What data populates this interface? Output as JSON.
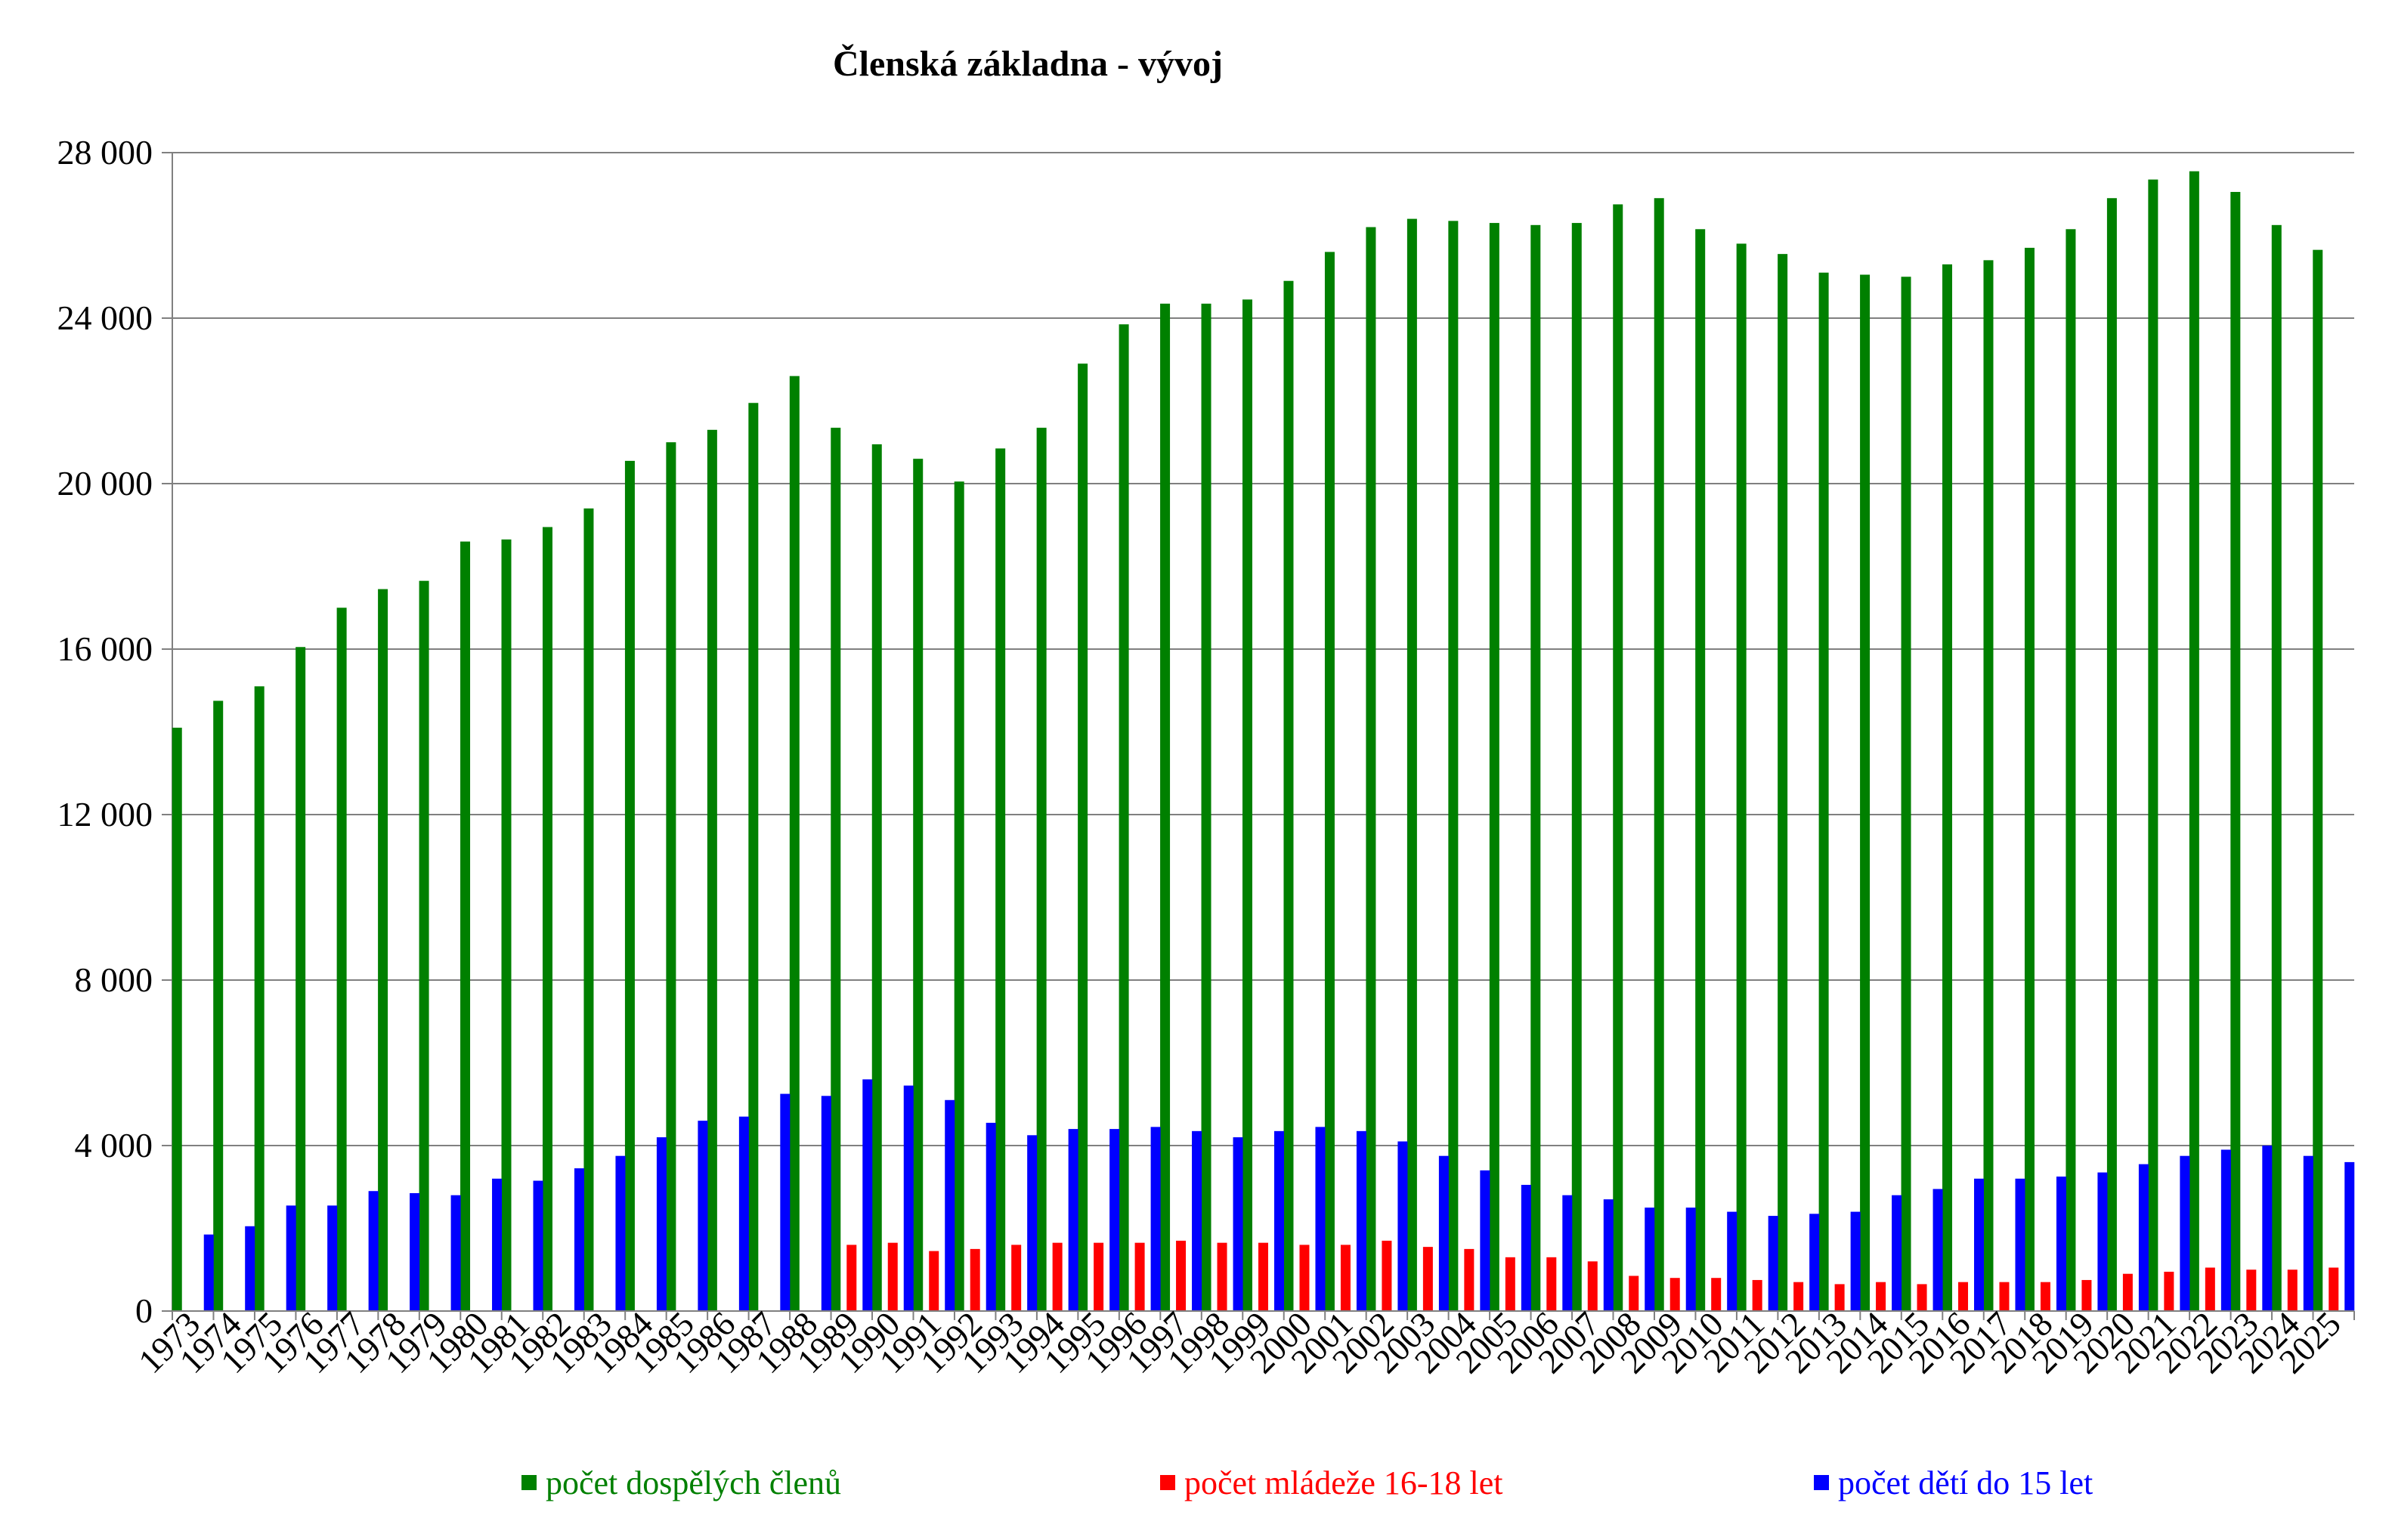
{
  "chart_data": {
    "type": "bar",
    "title": "Členská základna - vývoj",
    "xlabel": "",
    "ylabel": "",
    "ylim": [
      0,
      28000
    ],
    "yticks": [
      0,
      4000,
      8000,
      12000,
      16000,
      20000,
      24000,
      28000
    ],
    "ytick_labels": [
      "0",
      "4 000",
      "8 000",
      "12 000",
      "16 000",
      "20 000",
      "24 000",
      "28 000"
    ],
    "grid": true,
    "legend_position": "bottom",
    "categories": [
      "1973",
      "1974",
      "1975",
      "1976",
      "1977",
      "1978",
      "1979",
      "1980",
      "1981",
      "1982",
      "1983",
      "1984",
      "1985",
      "1986",
      "1987",
      "1988",
      "1989",
      "1990",
      "1991",
      "1992",
      "1993",
      "1994",
      "1995",
      "1996",
      "1997",
      "1998",
      "1999",
      "2000",
      "2001",
      "2002",
      "2003",
      "2004",
      "2005",
      "2006",
      "2007",
      "2008",
      "2009",
      "2010",
      "2011",
      "2012",
      "2013",
      "2014",
      "2015",
      "2016",
      "2017",
      "2018",
      "2019",
      "2020",
      "2021",
      "2022",
      "2023",
      "2024",
      "2025"
    ],
    "series": [
      {
        "name": "počet dospělých členů",
        "color": "#008000",
        "values": [
          14100,
          14750,
          15100,
          16050,
          17000,
          17450,
          17650,
          18600,
          18650,
          18950,
          19400,
          20550,
          21000,
          21300,
          21950,
          22600,
          21350,
          20950,
          20600,
          20050,
          20850,
          21350,
          22900,
          23850,
          24350,
          24350,
          24450,
          24900,
          25600,
          26200,
          26400,
          26350,
          26300,
          26250,
          26300,
          26750,
          26900,
          26150,
          25800,
          25550,
          25100,
          25050,
          25000,
          25300,
          25400,
          25700,
          26150,
          26900,
          27350,
          27550,
          27050,
          26250,
          25650
        ]
      },
      {
        "name": "počet mládeže 16-18 let",
        "color": "#ff0000",
        "values": [
          0,
          0,
          0,
          0,
          0,
          0,
          0,
          0,
          0,
          0,
          0,
          0,
          0,
          0,
          0,
          0,
          1600,
          1650,
          1450,
          1500,
          1600,
          1650,
          1650,
          1650,
          1700,
          1650,
          1650,
          1600,
          1600,
          1700,
          1550,
          1500,
          1300,
          1300,
          1200,
          850,
          800,
          800,
          750,
          700,
          650,
          700,
          650,
          700,
          700,
          700,
          750,
          900,
          950,
          1050,
          1000,
          1000,
          1050
        ]
      },
      {
        "name": "počet dětí do 15 let",
        "color": "#0000ff",
        "values": [
          1850,
          2050,
          2550,
          2550,
          2900,
          2850,
          2800,
          3200,
          3150,
          3450,
          3750,
          4200,
          4600,
          4700,
          5250,
          5200,
          5600,
          5450,
          5100,
          4550,
          4250,
          4400,
          4400,
          4450,
          4350,
          4200,
          4350,
          4450,
          4350,
          4100,
          3750,
          3400,
          3050,
          2800,
          2700,
          2500,
          2500,
          2400,
          2300,
          2350,
          2400,
          2800,
          2950,
          3200,
          3200,
          3250,
          3350,
          3550,
          3750,
          3900,
          4000,
          3750,
          3600
        ]
      }
    ]
  }
}
